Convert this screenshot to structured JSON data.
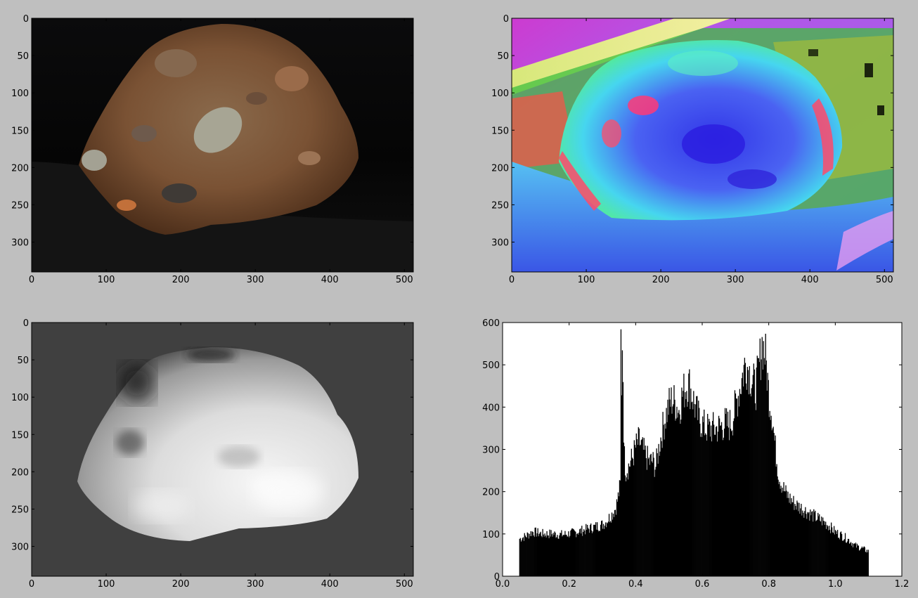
{
  "figure": {
    "background": "#bfbfbf",
    "panels": [
      "rock-photo",
      "normal-map",
      "depth-map",
      "histogram"
    ]
  },
  "image_panels": [
    {
      "name": "rock-photo",
      "content": "photograph",
      "xlim": [
        0,
        512
      ],
      "ylim": [
        340,
        0
      ],
      "xticks": [
        "0",
        "100",
        "200",
        "300",
        "400",
        "500"
      ],
      "yticks": [
        "0",
        "50",
        "100",
        "150",
        "200",
        "250",
        "300"
      ],
      "colors": {
        "background": "#050505",
        "rock": "#7a5536",
        "pebble": "#a9a89a"
      }
    },
    {
      "name": "normal-map",
      "content": "surface normal visualization",
      "xlim": [
        0,
        512
      ],
      "ylim": [
        340,
        0
      ],
      "xticks": [
        "0",
        "100",
        "200",
        "300",
        "400",
        "500"
      ],
      "yticks": [
        "0",
        "50",
        "100",
        "150",
        "200",
        "250",
        "300"
      ],
      "colors": {
        "magenta": "#d23cd6",
        "green": "#4dfa6a",
        "blue": "#4b4cf0",
        "cyan": "#59d6ff",
        "red": "#ff4a6a"
      }
    },
    {
      "name": "depth-map",
      "content": "grayscale depth",
      "xlim": [
        0,
        512
      ],
      "ylim": [
        340,
        0
      ],
      "xticks": [
        "0",
        "100",
        "200",
        "300",
        "400",
        "500"
      ],
      "yticks": [
        "0",
        "50",
        "100",
        "150",
        "200",
        "250",
        "300"
      ],
      "colors": {
        "background": "#404040",
        "near": "#f4f4f4",
        "far": "#141414"
      }
    }
  ],
  "chart_data": {
    "type": "bar",
    "title": "",
    "xlabel": "",
    "ylabel": "",
    "xlim": [
      0.0,
      1.2
    ],
    "ylim": [
      0,
      600
    ],
    "xticks": [
      "0.0",
      "0.2",
      "0.4",
      "0.6",
      "0.8",
      "1.0",
      "1.2"
    ],
    "yticks": [
      "0",
      "100",
      "200",
      "300",
      "400",
      "500",
      "600"
    ],
    "bar_color": "#000000",
    "bin_range": [
      0.05,
      1.1
    ],
    "profile_x": [
      0.05,
      0.07,
      0.09,
      0.12,
      0.15,
      0.18,
      0.21,
      0.24,
      0.27,
      0.3,
      0.31,
      0.32,
      0.33,
      0.34,
      0.345,
      0.35,
      0.355,
      0.36,
      0.365,
      0.37,
      0.38,
      0.39,
      0.4,
      0.41,
      0.42,
      0.43,
      0.44,
      0.45,
      0.46,
      0.47,
      0.48,
      0.49,
      0.5,
      0.51,
      0.52,
      0.53,
      0.54,
      0.55,
      0.56,
      0.57,
      0.58,
      0.59,
      0.6,
      0.61,
      0.62,
      0.63,
      0.64,
      0.65,
      0.66,
      0.67,
      0.68,
      0.69,
      0.7,
      0.71,
      0.72,
      0.73,
      0.74,
      0.75,
      0.76,
      0.77,
      0.78,
      0.79,
      0.8,
      0.81,
      0.82,
      0.83,
      0.84,
      0.85,
      0.86,
      0.88,
      0.9,
      0.92,
      0.94,
      0.96,
      0.98,
      1.0,
      1.02,
      1.04,
      1.06,
      1.08,
      1.1
    ],
    "profile_y": [
      88,
      95,
      105,
      100,
      100,
      98,
      102,
      108,
      115,
      122,
      128,
      138,
      148,
      162,
      178,
      200,
      222,
      584,
      290,
      250,
      262,
      280,
      305,
      320,
      300,
      285,
      270,
      272,
      258,
      305,
      345,
      378,
      405,
      418,
      408,
      392,
      428,
      448,
      455,
      428,
      395,
      372,
      360,
      350,
      348,
      350,
      348,
      352,
      356,
      362,
      356,
      368,
      402,
      436,
      470,
      508,
      488,
      462,
      442,
      490,
      552,
      520,
      430,
      382,
      298,
      238,
      215,
      198,
      186,
      170,
      160,
      150,
      140,
      131,
      120,
      104,
      96,
      86,
      72,
      66,
      58
    ]
  }
}
